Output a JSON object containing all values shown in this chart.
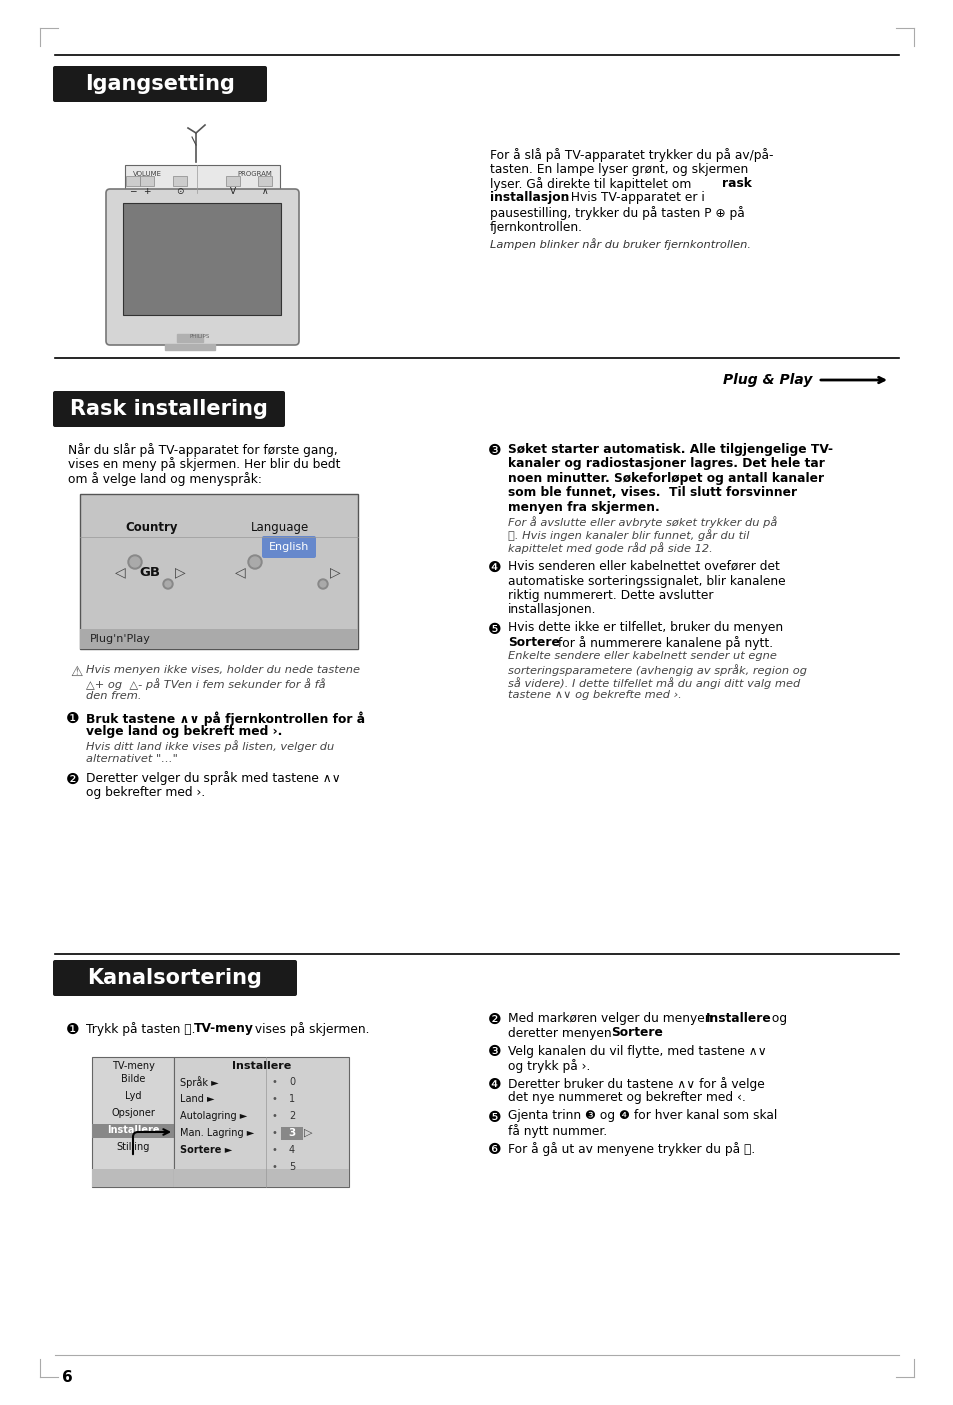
{
  "page_bg": "#ffffff",
  "page_num": "6",
  "section1_title": "Igangsetting",
  "section1_title_bg": "#1a1a1a",
  "section1_title_color": "#ffffff",
  "section2_title": "Rask installering",
  "section2_title_bg": "#1a1a1a",
  "section2_title_color": "#ffffff",
  "plug_play_label": "Plug & Play",
  "section3_title": "Kanalsortering",
  "section3_title_bg": "#1a1a1a",
  "section3_title_color": "#ffffff",
  "divider_color": "#000000",
  "body_font_size": 8.8,
  "small_font_size": 8.2,
  "title_font_size": 15
}
